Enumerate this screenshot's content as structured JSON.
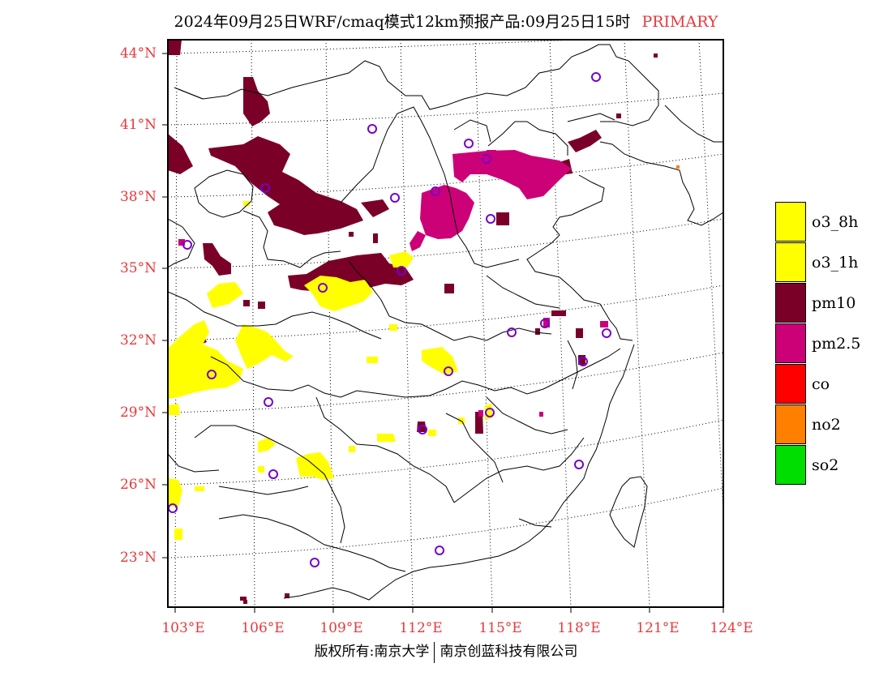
{
  "title": {
    "main": "2024年09月25日WRF/cmaq模式12km预报产品:09月25日15时",
    "tag": "PRIMARY"
  },
  "lat_labels": [
    "44°N",
    "41°N",
    "38°N",
    "35°N",
    "32°N",
    "29°N",
    "26°N",
    "23°N"
  ],
  "lon_labels": [
    "103°E",
    "106°E",
    "109°E",
    "112°E",
    "115°E",
    "118°E",
    "121°E",
    "124°E"
  ],
  "legend": [
    {
      "label": "o3_8h",
      "color": "#ffff00"
    },
    {
      "label": "o3_1h",
      "color": "#ffff00"
    },
    {
      "label": "pm10",
      "color": "#7a0028"
    },
    {
      "label": "pm2.5",
      "color": "#cc0077"
    },
    {
      "label": "co",
      "color": "#ff0000"
    },
    {
      "label": "no2",
      "color": "#ff7f00"
    },
    {
      "label": "so2",
      "color": "#00dd00"
    }
  ],
  "colors": {
    "o3": "#ffff00",
    "pm10": "#7a0028",
    "pm25": "#cc0077",
    "station": "#7700cc",
    "axis_label": "#e8393d"
  },
  "footer": {
    "left": "版权所有:南京大学",
    "right": "南京创蓝科技有限公司"
  }
}
